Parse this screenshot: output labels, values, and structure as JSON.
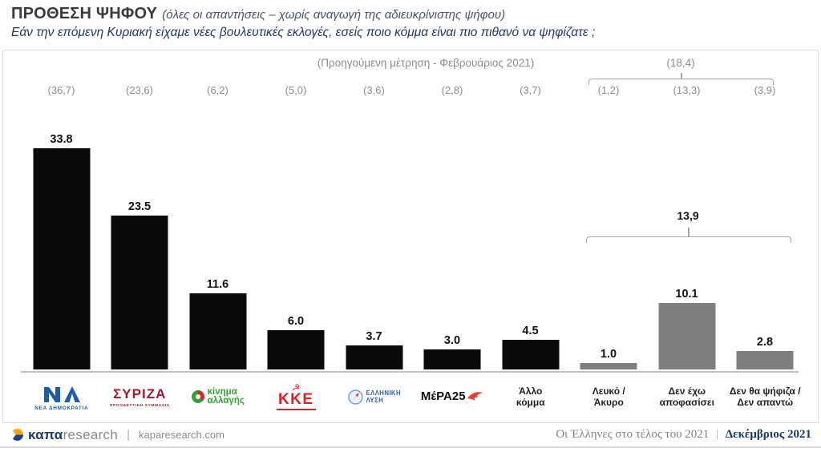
{
  "header": {
    "title": "ΠΡΟΘΕΣΗ ΨΗΦΟΥ",
    "title_note": "(όλες οι απαντήσεις – χωρίς αναγωγή της αδιευκρίνιστης ψήφου)",
    "subtitle": "Εάν την επόμενη Κυριακή είχαμε νέες βουλευτικές εκλογές, εσείς ποιο κόμμα είναι πιο πιθανό να ψηφίζατε ;"
  },
  "chart_data": {
    "type": "bar",
    "title": "ΠΡΟΘΕΣΗ ΨΗΦΟΥ (όλες οι απαντήσεις – χωρίς αναγωγή της αδιευκρίνιστης ψήφου)",
    "previous_header": "(Προηγούμενη μέτρηση - Φεβρουάριος 2021)",
    "ylim": [
      0,
      36
    ],
    "grid": false,
    "legend": "none",
    "categories": [
      "ΝΕΑ ΔΗΜΟΚΡΑΤΙΑ",
      "ΣΥΡΙΖΑ ΠΡΟΟΔΕΥΤΙΚΗ ΣΥΜΜΑΧΙΑ",
      "Κίνημα Αλλαγής",
      "ΚΚΕ",
      "ΕΛΛΗΝΙΚΗ ΛΥΣΗ",
      "ΜέΡΑ25",
      "Άλλο κόμμα",
      "Λευκό / Άκυρο",
      "Δεν έχω αποφασίσει",
      "Δεν θα ψήφιζα / Δεν απαντώ"
    ],
    "series": [
      {
        "name": "Δεκέμβριος 2021",
        "values": [
          33.8,
          23.5,
          11.6,
          6.0,
          3.7,
          3.0,
          4.5,
          1.0,
          10.1,
          2.8
        ]
      },
      {
        "name": "Προηγούμενη μέτρηση - Φεβρουάριος 2021",
        "values": [
          36.7,
          23.6,
          6.2,
          5.0,
          3.6,
          2.8,
          3.7,
          1.2,
          13.3,
          3.9
        ]
      }
    ],
    "group_brackets": {
      "previous_total_label": "(18,4)",
      "current_total_label": "13,9",
      "grouped_columns": [
        "Λευκό / Άκυρο",
        "Δεν έχω αποφασίσει",
        "Δεν θα ψήφιζα / Δεν απαντώ"
      ]
    },
    "columns": [
      {
        "party": "ΝΕΑ ΔΗΜΟΚΡΑΤΙΑ",
        "value": 33.8,
        "value_label": "33.8",
        "prev_label": "(36,7)",
        "bar_color": "#0a0a0a",
        "logo": {
          "type": "nd",
          "main": "ΝΔ",
          "sub": "ΝΕΑ ΔΗΜΟΚΡΑΤΙΑ",
          "color": "#1e5ca8"
        }
      },
      {
        "party": "ΣΥΡΙΖΑ",
        "value": 23.5,
        "value_label": "23.5",
        "prev_label": "(23,6)",
        "bar_color": "#0a0a0a",
        "logo": {
          "type": "syriza",
          "main": "ΣΥΡΙΖΑ",
          "sub": "ΠΡΟΟΔΕΥΤΙΚΗ ΣΥΜΜΑΧΙΑ",
          "color": "#9e1b32"
        }
      },
      {
        "party": "Κίνημα Αλλαγής",
        "value": 11.6,
        "value_label": "11.6",
        "prev_label": "(6,2)",
        "bar_color": "#0a0a0a",
        "logo": {
          "type": "kinal",
          "lines": [
            "κίνημα",
            "αλλαγής"
          ],
          "color": "#35a036"
        }
      },
      {
        "party": "ΚΚΕ",
        "value": 6.0,
        "value_label": "6.0",
        "prev_label": "(5,0)",
        "bar_color": "#0a0a0a",
        "logo": {
          "type": "kke",
          "symbol": "☭",
          "main": "ΚΚΕ",
          "color": "#e11f26"
        }
      },
      {
        "party": "ΕΛΛΗΝΙΚΗ ΛΥΣΗ",
        "value": 3.7,
        "value_label": "3.7",
        "prev_label": "(3,6)",
        "bar_color": "#0a0a0a",
        "logo": {
          "type": "ellysi",
          "lines": [
            "ΕΛΛΗΝΙΚΗ",
            "ΛΥΣΗ"
          ],
          "color": "#2f5fa5"
        }
      },
      {
        "party": "ΜέΡΑ25",
        "value": 3.0,
        "value_label": "3.0",
        "prev_label": "(2,8)",
        "bar_color": "#0a0a0a",
        "logo": {
          "type": "mera25",
          "main": "ΜέΡΑ25",
          "color": "#101010",
          "bird_color": "#e34234"
        }
      },
      {
        "party": "Άλλο κόμμα",
        "value": 4.5,
        "value_label": "4.5",
        "prev_label": "(3,7)",
        "bar_color": "#0a0a0a",
        "label_lines": [
          "Άλλο",
          "κόμμα"
        ]
      },
      {
        "party": "Λευκό / Άκυρο",
        "value": 1.0,
        "value_label": "1.0",
        "prev_label": "(1,2)",
        "bar_color": "#7f7f7f",
        "label_lines": [
          "Λευκό /",
          "Άκυρο"
        ]
      },
      {
        "party": "Δεν έχω αποφασίσει",
        "value": 10.1,
        "value_label": "10.1",
        "prev_label": "(13,3)",
        "bar_color": "#7f7f7f",
        "label_lines": [
          "Δεν έχω",
          "αποφασίσει"
        ]
      },
      {
        "party": "Δεν θα ψήφιζα / Δεν απαντώ",
        "value": 2.8,
        "value_label": "2.8",
        "prev_label": "(3,9)",
        "bar_color": "#7f7f7f",
        "label_lines": [
          "Δεν θα ψήφιζα /",
          "Δεν απαντώ"
        ]
      }
    ]
  },
  "footer": {
    "brand_bold": "καπα",
    "brand_light": "research",
    "separator": "|",
    "website": "kaparesearch.com",
    "report_title": "Οι Έλληνες στο τέλος του 2021",
    "report_date": "Δεκέμβριος 2021"
  },
  "colors": {
    "bar_black": "#0a0a0a",
    "bar_gray": "#7f7f7f",
    "bracket_gray": "#a6a6a6",
    "prev_text_gray": "#8c8c8c",
    "title_dark": "#3b3b3b",
    "subtitle_navy": "#1f3864",
    "footer_navy": "#17375d"
  }
}
